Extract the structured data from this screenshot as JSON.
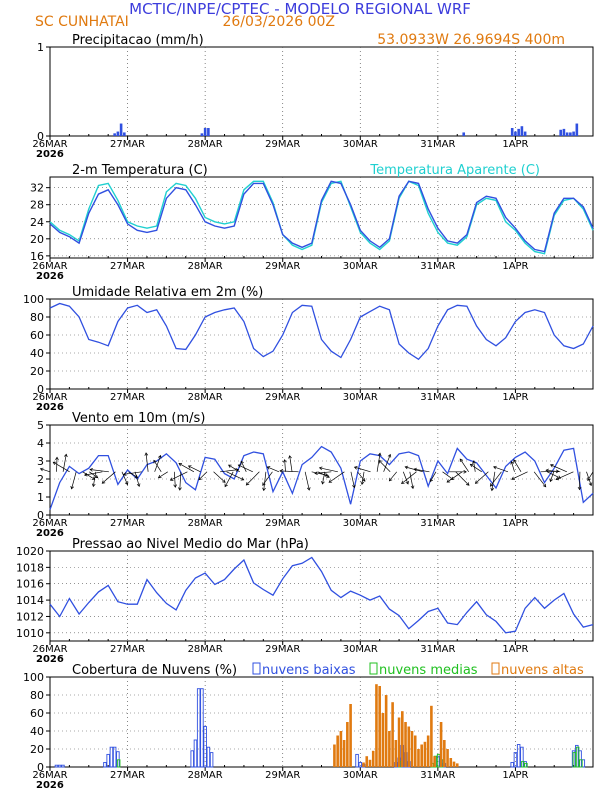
{
  "header": {
    "title": "MCTIC/INPE/CPTEC - MODELO REGIONAL WRF",
    "location": "SC CUNHATAI",
    "run": "26/03/2026 00Z",
    "coords": "53.0933W 26.9694S 400m"
  },
  "colors": {
    "title": "#3c3cdc",
    "orange": "#e07a10",
    "blue": "#3050e0",
    "cyan": "#20d0d0",
    "green": "#20c020",
    "axis": "#000000",
    "grid": "#555555"
  },
  "xaxis": {
    "days": [
      "26MAR",
      "27MAR",
      "28MAR",
      "29MAR",
      "30MAR",
      "31MAR",
      "1APR"
    ],
    "year": "2026",
    "range_h": [
      0,
      168
    ]
  },
  "chart_data": [
    {
      "id": "precip",
      "type": "bar",
      "title": "Precipitacao (mm/h)",
      "ylim": [
        0,
        1
      ],
      "yticks": [
        "0",
        "1"
      ],
      "hours": [
        20,
        21,
        22,
        23,
        47,
        48,
        49,
        128,
        143,
        144,
        145,
        146,
        147,
        158,
        159,
        160,
        161,
        162,
        163
      ],
      "values": [
        0.03,
        0.05,
        0.14,
        0.04,
        0.03,
        0.09,
        0.09,
        0.04,
        0.09,
        0.05,
        0.08,
        0.11,
        0.05,
        0.07,
        0.08,
        0.04,
        0.04,
        0.05,
        0.14
      ]
    },
    {
      "id": "temp",
      "type": "line",
      "title": "2-m Temperatura (C)",
      "legend": [
        "Temperatura Aparente (C)"
      ],
      "ylim": [
        15.5,
        34.5
      ],
      "yticks": [
        16,
        20,
        24,
        28,
        32
      ],
      "series": [
        {
          "name": "2-m Temperatura (C)",
          "t": [
            0,
            3,
            6,
            9,
            12,
            15,
            18,
            21,
            24,
            27,
            30,
            33,
            36,
            39,
            42,
            45,
            48,
            51,
            54,
            57,
            60,
            63,
            66,
            69,
            72,
            75,
            78,
            81,
            84,
            87,
            90,
            93,
            96,
            99,
            102,
            105,
            108,
            111,
            114,
            117,
            120,
            123,
            126,
            129,
            132,
            135,
            138,
            141,
            144,
            147,
            150,
            153,
            156,
            159,
            162,
            165,
            168
          ],
          "values": [
            23.5,
            21.5,
            20.5,
            19.0,
            26.0,
            30.5,
            31.5,
            28.0,
            23.5,
            22.0,
            21.5,
            22.0,
            29.5,
            32.0,
            31.5,
            28.0,
            24.0,
            23.0,
            22.5,
            23.0,
            30.5,
            33.0,
            33.0,
            28.0,
            21.0,
            19.0,
            18.0,
            19.0,
            29.0,
            33.5,
            33.0,
            28.0,
            22.0,
            19.5,
            18.0,
            20.0,
            30.0,
            33.5,
            33.0,
            27.0,
            22.5,
            19.5,
            19.0,
            21.0,
            28.5,
            30.0,
            29.5,
            25.0,
            22.5,
            19.5,
            17.5,
            17.0,
            26.0,
            29.5,
            29.5,
            27.5,
            22.5
          ]
        },
        {
          "name": "Temperatura Aparente (C)",
          "t": [
            0,
            3,
            6,
            9,
            12,
            15,
            18,
            21,
            24,
            27,
            30,
            33,
            36,
            39,
            42,
            45,
            48,
            51,
            54,
            57,
            60,
            63,
            66,
            69,
            72,
            75,
            78,
            81,
            84,
            87,
            90,
            93,
            96,
            99,
            102,
            105,
            108,
            111,
            114,
            117,
            120,
            123,
            126,
            129,
            132,
            135,
            138,
            141,
            144,
            147,
            150,
            153,
            156,
            159,
            162,
            165,
            168
          ],
          "values": [
            24.0,
            22.0,
            21.0,
            19.5,
            27.0,
            32.5,
            33.0,
            29.0,
            24.0,
            23.0,
            22.5,
            23.0,
            31.0,
            33.0,
            32.5,
            29.5,
            25.0,
            24.0,
            23.5,
            24.0,
            31.5,
            33.5,
            33.5,
            28.5,
            21.0,
            18.5,
            17.5,
            18.5,
            28.5,
            33.0,
            33.5,
            27.5,
            21.5,
            19.0,
            17.5,
            19.5,
            29.5,
            33.5,
            32.5,
            26.0,
            21.5,
            19.0,
            18.5,
            20.5,
            28.0,
            29.5,
            29.0,
            24.0,
            22.0,
            19.0,
            17.0,
            16.5,
            25.5,
            29.0,
            29.5,
            27.0,
            22.0
          ]
        }
      ]
    },
    {
      "id": "rh",
      "type": "line",
      "title": "Umidade Relativa em 2m (%)",
      "ylim": [
        0,
        100
      ],
      "yticks": [
        0,
        20,
        40,
        60,
        80,
        100
      ],
      "t": [
        0,
        3,
        6,
        9,
        12,
        15,
        18,
        21,
        24,
        27,
        30,
        33,
        36,
        39,
        42,
        45,
        48,
        51,
        54,
        57,
        60,
        63,
        66,
        69,
        72,
        75,
        78,
        81,
        84,
        87,
        90,
        93,
        96,
        99,
        102,
        105,
        108,
        111,
        114,
        117,
        120,
        123,
        126,
        129,
        132,
        135,
        138,
        141,
        144,
        147,
        150,
        153,
        156,
        159,
        162,
        165,
        168
      ],
      "values": [
        90,
        95,
        92,
        80,
        55,
        52,
        48,
        75,
        90,
        93,
        85,
        88,
        70,
        45,
        44,
        60,
        80,
        85,
        88,
        90,
        75,
        45,
        36,
        42,
        60,
        85,
        93,
        92,
        55,
        42,
        35,
        55,
        80,
        86,
        92,
        88,
        50,
        40,
        33,
        45,
        70,
        88,
        93,
        92,
        70,
        55,
        48,
        57,
        75,
        85,
        88,
        85,
        60,
        48,
        45,
        50,
        70
      ]
    },
    {
      "id": "wind",
      "type": "line",
      "title": "Vento em 10m (m/s)",
      "ylim": [
        0,
        5
      ],
      "yticks": [
        0,
        1,
        2,
        3,
        4,
        5
      ],
      "t": [
        0,
        3,
        6,
        9,
        12,
        15,
        18,
        21,
        24,
        27,
        30,
        33,
        36,
        39,
        42,
        45,
        48,
        51,
        54,
        57,
        60,
        63,
        66,
        69,
        72,
        75,
        78,
        81,
        84,
        87,
        90,
        93,
        96,
        99,
        102,
        105,
        108,
        111,
        114,
        117,
        120,
        123,
        126,
        129,
        132,
        135,
        138,
        141,
        144,
        147,
        150,
        153,
        156,
        159,
        162,
        165,
        168
      ],
      "values": [
        0.3,
        1.8,
        2.7,
        2.3,
        2.6,
        3.3,
        3.3,
        1.7,
        2.5,
        2.0,
        2.8,
        3.0,
        3.4,
        2.9,
        1.8,
        1.4,
        3.2,
        3.1,
        2.3,
        2.0,
        3.3,
        3.5,
        3.4,
        1.3,
        2.4,
        1.2,
        2.8,
        3.2,
        3.8,
        3.5,
        2.6,
        0.6,
        3.0,
        3.4,
        3.3,
        2.8,
        3.4,
        3.5,
        3.3,
        1.6,
        3.0,
        2.3,
        3.7,
        3.1,
        2.9,
        2.2,
        1.5,
        2.7,
        3.2,
        3.5,
        3.0,
        1.8,
        2.6,
        3.6,
        3.7,
        0.7,
        1.2
      ],
      "vector_count": 84
    },
    {
      "id": "slp",
      "type": "line",
      "title": "Pressao ao Nivel Medio do Mar (hPa)",
      "ylim": [
        1009,
        1020
      ],
      "yticks": [
        1010,
        1012,
        1014,
        1016,
        1018,
        1020
      ],
      "t": [
        0,
        3,
        6,
        9,
        12,
        15,
        18,
        21,
        24,
        27,
        30,
        33,
        36,
        39,
        42,
        45,
        48,
        51,
        54,
        57,
        60,
        63,
        66,
        69,
        72,
        75,
        78,
        81,
        84,
        87,
        90,
        93,
        96,
        99,
        102,
        105,
        108,
        111,
        114,
        117,
        120,
        123,
        126,
        129,
        132,
        135,
        138,
        141,
        144,
        147,
        150,
        153,
        156,
        159,
        162,
        165,
        168
      ],
      "values": [
        1013.5,
        1012.0,
        1014.2,
        1012.3,
        1013.7,
        1015.0,
        1015.8,
        1013.8,
        1013.5,
        1013.5,
        1016.5,
        1014.9,
        1013.6,
        1012.8,
        1015.2,
        1016.7,
        1017.3,
        1015.9,
        1016.5,
        1017.8,
        1018.9,
        1016.1,
        1015.3,
        1014.6,
        1016.6,
        1018.2,
        1018.5,
        1019.2,
        1017.5,
        1015.2,
        1014.3,
        1015.1,
        1014.6,
        1014.0,
        1014.5,
        1012.9,
        1012.1,
        1010.5,
        1011.5,
        1012.6,
        1013.0,
        1011.2,
        1011.0,
        1012.5,
        1013.8,
        1012.2,
        1011.4,
        1010.0,
        1010.2,
        1013.0,
        1014.3,
        1013.0,
        1014.0,
        1014.8,
        1012.3,
        1010.7,
        1011.0
      ]
    },
    {
      "id": "clouds",
      "type": "bar",
      "title": "Cobertura de Nuvens (%)",
      "legend": [
        "nuvens baixas",
        "nuvens medias",
        "nuvens altas"
      ],
      "ylim": [
        0,
        100
      ],
      "yticks": [
        0,
        20,
        40,
        60,
        80,
        100
      ],
      "series": [
        {
          "name": "nuvens baixas",
          "hours": [
            2,
            3,
            4,
            17,
            18,
            19,
            20,
            21,
            44,
            45,
            46,
            47,
            48,
            49,
            50,
            95,
            96,
            97,
            107,
            108,
            109,
            110,
            111,
            120,
            121,
            122,
            143,
            144,
            145,
            146,
            147,
            162,
            163,
            164,
            165
          ],
          "values": [
            2,
            2,
            2,
            5,
            14,
            22,
            22,
            17,
            18,
            30,
            87,
            87,
            45,
            22,
            16,
            14,
            5,
            3,
            5,
            10,
            24,
            16,
            6,
            12,
            8,
            4,
            5,
            16,
            25,
            22,
            6,
            18,
            24,
            18,
            8
          ]
        },
        {
          "name": "nuvens medias",
          "hours": [
            21,
            108,
            118,
            119,
            120,
            121,
            146,
            147,
            162,
            163,
            164
          ],
          "values": [
            8,
            6,
            4,
            12,
            14,
            8,
            6,
            4,
            16,
            22,
            8
          ]
        },
        {
          "name": "nuvens altas",
          "hours": [
            88,
            89,
            90,
            91,
            92,
            93,
            97,
            98,
            99,
            100,
            101,
            102,
            103,
            104,
            105,
            106,
            107,
            108,
            109,
            110,
            111,
            112,
            113,
            114,
            115,
            116,
            117,
            118,
            119,
            121,
            122,
            123,
            124,
            125,
            126
          ],
          "values": [
            25,
            35,
            40,
            30,
            50,
            70,
            5,
            12,
            8,
            18,
            92,
            90,
            60,
            80,
            40,
            72,
            30,
            55,
            62,
            50,
            45,
            40,
            35,
            20,
            25,
            28,
            35,
            68,
            12,
            50,
            30,
            20,
            10,
            6,
            4
          ]
        }
      ]
    }
  ]
}
